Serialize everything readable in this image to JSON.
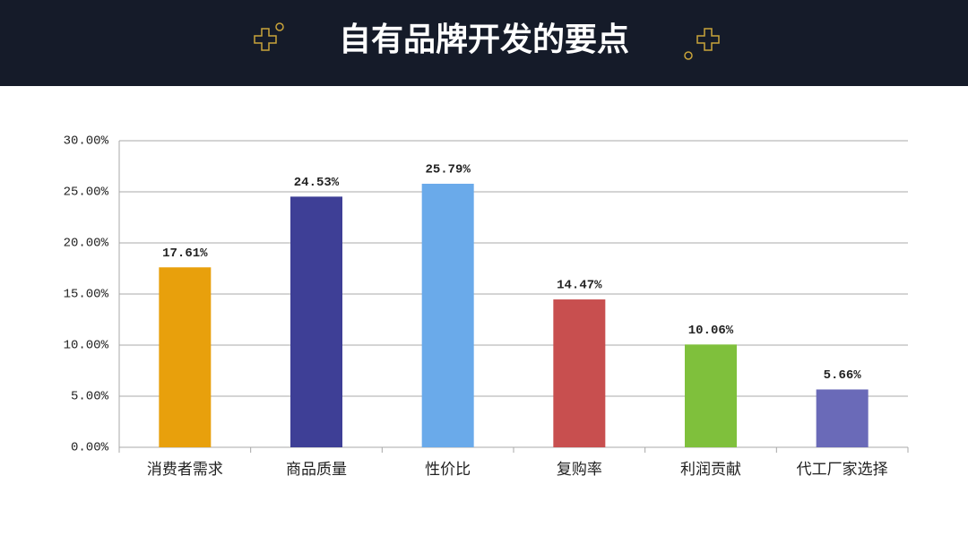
{
  "chart_data": {
    "type": "bar",
    "title": "自有品牌开发的要点",
    "categories": [
      "消费者需求",
      "商品质量",
      "性价比",
      "复购率",
      "利润贡献",
      "代工厂家选择"
    ],
    "values": [
      17.61,
      24.53,
      25.79,
      14.47,
      10.06,
      5.66
    ],
    "value_labels": [
      "17.61%",
      "24.53%",
      "25.79%",
      "14.47%",
      "10.06%",
      "5.66%"
    ],
    "colors": [
      "#e8a00c",
      "#3e3f96",
      "#6aaaea",
      "#c84f4f",
      "#7fc03c",
      "#6a6ab8"
    ],
    "ylim": [
      0,
      30
    ],
    "yticks": [
      {
        "value": 0,
        "label": "0.00%"
      },
      {
        "value": 5,
        "label": "5.00%"
      },
      {
        "value": 10,
        "label": "10.00%"
      },
      {
        "value": 15,
        "label": "15.00%"
      },
      {
        "value": 20,
        "label": "20.00%"
      },
      {
        "value": 25,
        "label": "25.00%"
      },
      {
        "value": 30,
        "label": "30.00%"
      }
    ],
    "grid": true
  }
}
